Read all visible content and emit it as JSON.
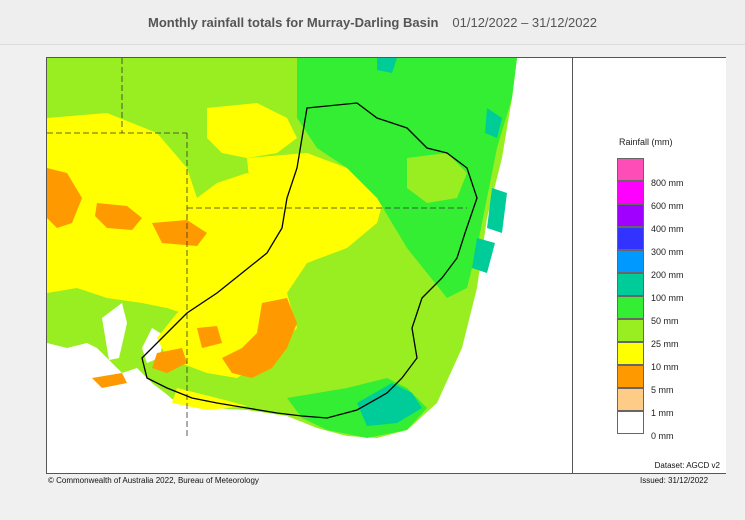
{
  "header": {
    "title": "Monthly rainfall totals for Murray-Darling Basin",
    "date_range": "01/12/2022 – 31/12/2022"
  },
  "legend": {
    "title": "Rainfall (mm)",
    "items": [
      {
        "label": "800 mm",
        "color": "#ff4db8"
      },
      {
        "label": "600 mm",
        "color": "#ff00ff"
      },
      {
        "label": "400 mm",
        "color": "#a000ff"
      },
      {
        "label": "300 mm",
        "color": "#3333ff"
      },
      {
        "label": "200 mm",
        "color": "#0099ff"
      },
      {
        "label": "100 mm",
        "color": "#00cc99"
      },
      {
        "label": "50 mm",
        "color": "#33ee33"
      },
      {
        "label": "25 mm",
        "color": "#99ee22"
      },
      {
        "label": "10 mm",
        "color": "#ffff00"
      },
      {
        "label": "5 mm",
        "color": "#ff9900"
      },
      {
        "label": "1 mm",
        "color": "#ffcc88"
      },
      {
        "label": "0 mm",
        "color": "#ffffff"
      }
    ]
  },
  "map": {
    "region": "Murray-Darling Basin",
    "colors": {
      "ocean": "#ffffff",
      "land_base": "#99ee22",
      "dry": "#ffff00",
      "very_dry": "#ff9900",
      "wet": "#33ee33",
      "very_wet": "#00cc99",
      "boundary": "#000000"
    }
  },
  "footer": {
    "copyright": "© Commonwealth of Australia 2022, Bureau of Meteorology",
    "dataset": "Dataset: AGCD v2",
    "issued": "Issued: 31/12/2022"
  }
}
